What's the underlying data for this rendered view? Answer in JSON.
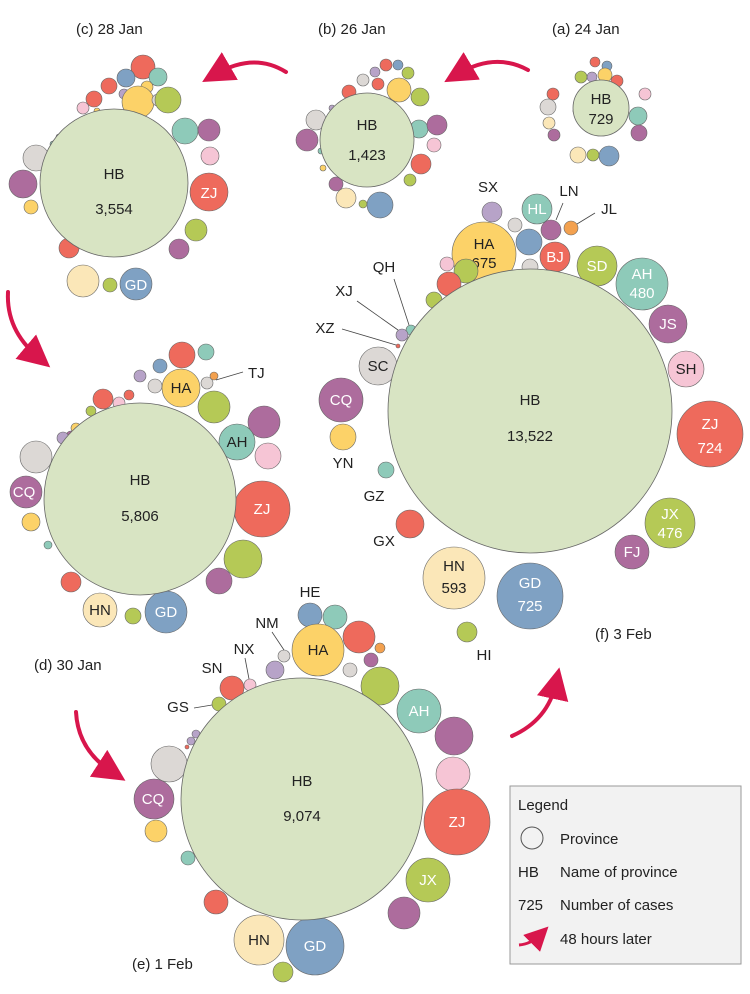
{
  "colors": {
    "hb": "#d8e4c3",
    "red": "#ee6a5c",
    "yellow": "#fcd268",
    "olive": "#b5c956",
    "teal": "#8ecab9",
    "purple": "#ad6c9d",
    "pink": "#f6c5d5",
    "blue": "#7fa1c3",
    "cream": "#fbe7b8",
    "grey": "#dcd8d5",
    "lavender": "#b7a3c8",
    "orange": "#f3a14f",
    "arrow": "#d8164c"
  },
  "panels": [
    {
      "id": "a",
      "label": "(a) 24 Jan",
      "hb_cases": "729"
    },
    {
      "id": "b",
      "label": "(b) 26 Jan",
      "hb_cases": "1,423"
    },
    {
      "id": "c",
      "label": "(c) 28 Jan",
      "hb_cases": "3,554"
    },
    {
      "id": "d",
      "label": "(d) 30 Jan",
      "hb_cases": "5,806"
    },
    {
      "id": "e",
      "label": "(e) 1 Feb",
      "hb_cases": "9,074"
    },
    {
      "id": "f",
      "label": "(f) 3 Feb",
      "hb_cases": "13,522"
    }
  ],
  "province_labels": {
    "hb": "HB",
    "zj": "ZJ",
    "gd": "GD",
    "ha": "HA",
    "ah": "AH",
    "cq": "CQ",
    "hn": "HN",
    "jx": "JX",
    "tj": "TJ",
    "he": "HE",
    "nm": "NM",
    "nx": "NX",
    "sn": "SN",
    "gs": "GS",
    "sx": "SX",
    "hl": "HL",
    "ln": "LN",
    "jl": "JL",
    "bj": "BJ",
    "sd": "SD",
    "js": "JS",
    "sh": "SH",
    "fj": "FJ",
    "qh": "QH",
    "xj": "XJ",
    "xz": "XZ",
    "sc": "SC",
    "yn": "YN",
    "gz": "GZ",
    "gx": "GX",
    "hi": "HI"
  },
  "f_counts": {
    "ha": "675",
    "ah": "480",
    "zj": "724",
    "jx": "476",
    "gd": "725",
    "hn": "593"
  },
  "legend": {
    "title": "Legend",
    "province": "Province",
    "name_key": "HB",
    "name_desc": "Name of province",
    "number_key": "725",
    "number_desc": "Number of cases",
    "arrow_desc": "48 hours later"
  }
}
